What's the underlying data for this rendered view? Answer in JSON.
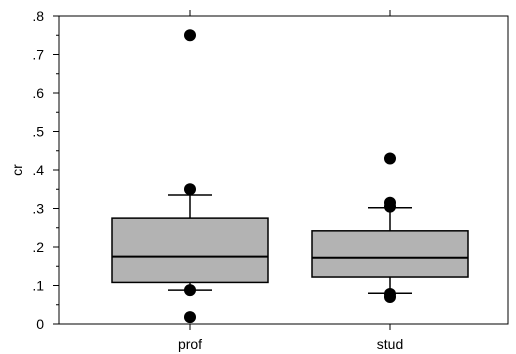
{
  "chart_data": {
    "type": "boxplot",
    "title": "",
    "xlabel": "",
    "ylabel": "cr",
    "ylim": [
      0,
      0.8
    ],
    "y_ticks": [
      {
        "value": 0,
        "label": "0"
      },
      {
        "value": 0.1,
        "label": ".1"
      },
      {
        "value": 0.2,
        "label": ".2"
      },
      {
        "value": 0.3,
        "label": ".3"
      },
      {
        "value": 0.4,
        "label": ".4"
      },
      {
        "value": 0.5,
        "label": ".5"
      },
      {
        "value": 0.6,
        "label": ".6"
      },
      {
        "value": 0.7,
        "label": ".7"
      },
      {
        "value": 0.8,
        "label": ".8"
      }
    ],
    "grid": false,
    "box_color": "#b3b3b3",
    "categories": [
      "prof",
      "stud"
    ],
    "boxes": [
      {
        "category": "prof",
        "whisker_low": 0.088,
        "q1": 0.108,
        "median": 0.175,
        "q3": 0.275,
        "whisker_high": 0.335,
        "outliers": [
          0.018,
          0.088,
          0.35,
          0.75
        ]
      },
      {
        "category": "stud",
        "whisker_low": 0.08,
        "q1": 0.122,
        "median": 0.172,
        "q3": 0.242,
        "whisker_high": 0.302,
        "outliers": [
          0.07,
          0.078,
          0.305,
          0.315,
          0.43
        ]
      }
    ]
  }
}
